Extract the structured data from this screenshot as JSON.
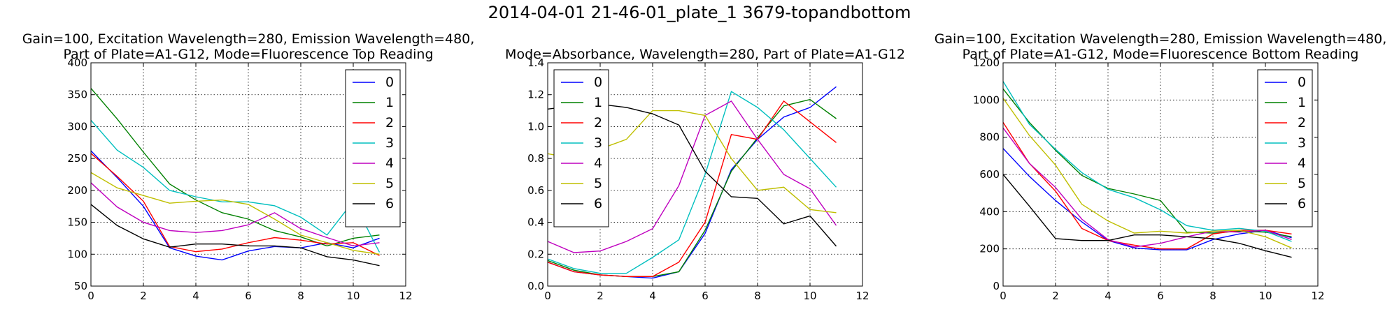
{
  "figure_title": "2014-04-01 21-46-01_plate_1 3679-topandbottom",
  "chart_data": [
    {
      "type": "line",
      "title_lines": [
        "Gain=100, Excitation Wavelength=280, Emission Wavelength=480,",
        "Part of Plate=A1-G12, Mode=Fluorescence Top Reading"
      ],
      "xlim": [
        0,
        12
      ],
      "ylim": [
        50,
        400
      ],
      "xticks": [
        0,
        2,
        4,
        6,
        8,
        10,
        12
      ],
      "yticks": [
        50,
        100,
        150,
        200,
        250,
        300,
        350,
        400
      ],
      "grid": true,
      "legend_loc": "upper right",
      "x": [
        0,
        1,
        2,
        3,
        4,
        5,
        6,
        7,
        8,
        9,
        10,
        11
      ],
      "series": [
        {
          "name": "0",
          "color": "#0000ff",
          "values": [
            262,
            220,
            175,
            110,
            97,
            91,
            105,
            112,
            110,
            118,
            110,
            125
          ]
        },
        {
          "name": "1",
          "color": "#008000",
          "values": [
            360,
            312,
            260,
            210,
            185,
            165,
            155,
            137,
            127,
            113,
            125,
            130
          ]
        },
        {
          "name": "2",
          "color": "#ff0000",
          "values": [
            258,
            222,
            183,
            112,
            104,
            108,
            118,
            126,
            122,
            116,
            118,
            98
          ]
        },
        {
          "name": "3",
          "color": "#00bfbf",
          "values": [
            310,
            263,
            236,
            200,
            190,
            182,
            182,
            176,
            158,
            130,
            183,
            103
          ]
        },
        {
          "name": "4",
          "color": "#bf00bf",
          "values": [
            212,
            174,
            150,
            137,
            134,
            137,
            146,
            165,
            140,
            126,
            113,
            118
          ]
        },
        {
          "name": "5",
          "color": "#bfbf00",
          "values": [
            228,
            204,
            192,
            180,
            183,
            185,
            178,
            155,
            130,
            118,
            106,
            100
          ]
        },
        {
          "name": "6",
          "color": "#000000",
          "values": [
            178,
            145,
            124,
            111,
            116,
            116,
            113,
            113,
            110,
            96,
            91,
            82
          ]
        }
      ]
    },
    {
      "type": "line",
      "title_lines": [
        "Mode=Absorbance, Wavelength=280, Part of Plate=A1-G12"
      ],
      "xlim": [
        0,
        12
      ],
      "ylim": [
        0.0,
        1.4
      ],
      "xticks": [
        0,
        2,
        4,
        6,
        8,
        10,
        12
      ],
      "yticks": [
        "0.0",
        "0.2",
        "0.4",
        "0.6",
        "0.8",
        "1.0",
        "1.2",
        "1.4"
      ],
      "grid": true,
      "legend_loc": "upper left",
      "x": [
        0,
        1,
        2,
        3,
        4,
        5,
        6,
        7,
        8,
        9,
        10,
        11
      ],
      "series": [
        {
          "name": "0",
          "color": "#0000ff",
          "values": [
            0.15,
            0.09,
            0.07,
            0.06,
            0.05,
            0.09,
            0.33,
            0.73,
            0.92,
            1.06,
            1.12,
            1.25
          ]
        },
        {
          "name": "1",
          "color": "#008000",
          "values": [
            0.16,
            0.1,
            0.07,
            0.06,
            0.06,
            0.09,
            0.35,
            0.72,
            0.93,
            1.13,
            1.17,
            1.05
          ]
        },
        {
          "name": "2",
          "color": "#ff0000",
          "values": [
            0.15,
            0.09,
            0.07,
            0.06,
            0.06,
            0.15,
            0.4,
            0.95,
            0.92,
            1.16,
            1.03,
            0.9
          ]
        },
        {
          "name": "3",
          "color": "#00bfbf",
          "values": [
            0.17,
            0.11,
            0.08,
            0.08,
            0.18,
            0.29,
            0.7,
            1.22,
            1.12,
            0.98,
            0.8,
            0.62
          ]
        },
        {
          "name": "4",
          "color": "#bf00bf",
          "values": [
            0.28,
            0.21,
            0.22,
            0.28,
            0.36,
            0.63,
            1.07,
            1.16,
            0.92,
            0.7,
            0.61,
            0.38
          ]
        },
        {
          "name": "5",
          "color": "#bfbf00",
          "values": [
            0.83,
            0.8,
            0.86,
            0.92,
            1.1,
            1.1,
            1.07,
            0.8,
            0.6,
            0.62,
            0.48,
            0.46
          ]
        },
        {
          "name": "6",
          "color": "#000000",
          "values": [
            1.11,
            1.13,
            1.14,
            1.12,
            1.08,
            1.01,
            0.72,
            0.56,
            0.55,
            0.39,
            0.44,
            0.25
          ]
        }
      ]
    },
    {
      "type": "line",
      "title_lines": [
        "Gain=100, Excitation Wavelength=280, Emission Wavelength=480,",
        "Part of Plate=A1-G12, Mode=Fluorescence Bottom Reading"
      ],
      "xlim": [
        0,
        12
      ],
      "ylim": [
        0,
        1200
      ],
      "xticks": [
        0,
        2,
        4,
        6,
        8,
        10,
        12
      ],
      "yticks": [
        0,
        200,
        400,
        600,
        800,
        1000,
        1200
      ],
      "grid": true,
      "legend_loc": "upper right",
      "x": [
        0,
        1,
        2,
        3,
        4,
        5,
        6,
        7,
        8,
        9,
        10,
        11
      ],
      "series": [
        {
          "name": "0",
          "color": "#0000ff",
          "values": [
            740,
            590,
            460,
            345,
            245,
            205,
            195,
            195,
            250,
            280,
            300,
            260
          ]
        },
        {
          "name": "1",
          "color": "#008000",
          "values": [
            1060,
            880,
            730,
            595,
            525,
            495,
            460,
            290,
            285,
            295,
            290,
            265
          ]
        },
        {
          "name": "2",
          "color": "#ff0000",
          "values": [
            880,
            660,
            510,
            310,
            245,
            220,
            200,
            200,
            280,
            300,
            300,
            280
          ]
        },
        {
          "name": "3",
          "color": "#00bfbf",
          "values": [
            1100,
            870,
            735,
            610,
            520,
            475,
            410,
            325,
            300,
            310,
            295,
            240
          ]
        },
        {
          "name": "4",
          "color": "#bf00bf",
          "values": [
            850,
            660,
            530,
            360,
            250,
            210,
            230,
            265,
            295,
            290,
            300,
            250
          ]
        },
        {
          "name": "5",
          "color": "#bfbf00",
          "values": [
            1010,
            810,
            650,
            440,
            350,
            285,
            295,
            285,
            295,
            300,
            265,
            205
          ]
        },
        {
          "name": "6",
          "color": "#000000",
          "values": [
            600,
            430,
            255,
            245,
            245,
            275,
            275,
            265,
            255,
            230,
            190,
            155
          ]
        }
      ]
    }
  ]
}
